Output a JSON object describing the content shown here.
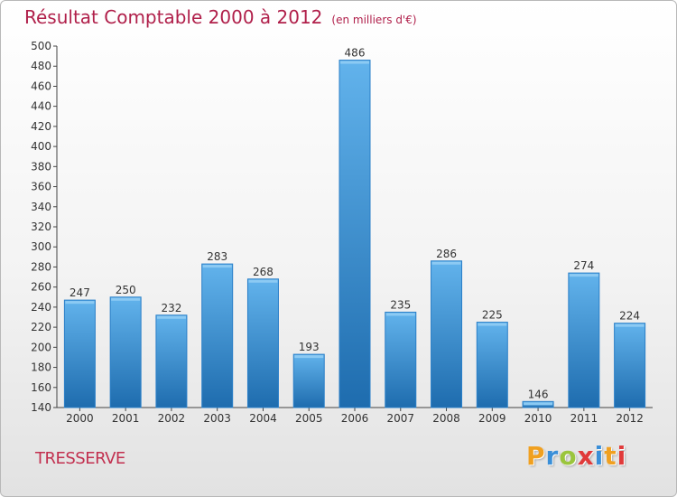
{
  "title": "Résultat Comptable 2000 à 2012",
  "subtitle": "(en milliers d'€)",
  "city": "TRESSERVE",
  "logo": {
    "text": "Proxiti",
    "letters": [
      "P",
      "r",
      "o",
      "x",
      "i",
      "t",
      "i"
    ],
    "colors": [
      "#f0a020",
      "#3a8fd8",
      "#9bc53d",
      "#e03a3a",
      "#3a8fd8",
      "#f0a020",
      "#e03a3a"
    ]
  },
  "colors": {
    "title": "#b01f4a",
    "bar_light": "#5fb0ea",
    "bar_dark": "#1f6fb3",
    "bar_edge": "#2a7fc8"
  },
  "chart_data": {
    "type": "bar",
    "title": "Résultat Comptable 2000 à 2012",
    "subtitle": "(en milliers d'€)",
    "xlabel": "",
    "ylabel": "",
    "categories": [
      "2000",
      "2001",
      "2002",
      "2003",
      "2004",
      "2005",
      "2006",
      "2007",
      "2008",
      "2009",
      "2010",
      "2011",
      "2012"
    ],
    "values": [
      247,
      250,
      232,
      283,
      268,
      193,
      486,
      235,
      286,
      225,
      146,
      274,
      224
    ],
    "ylim": [
      140,
      500
    ],
    "yticks": [
      140,
      160,
      180,
      200,
      220,
      240,
      260,
      280,
      300,
      320,
      340,
      360,
      380,
      400,
      420,
      440,
      460,
      480,
      500
    ],
    "grid": false,
    "legend": "none"
  }
}
